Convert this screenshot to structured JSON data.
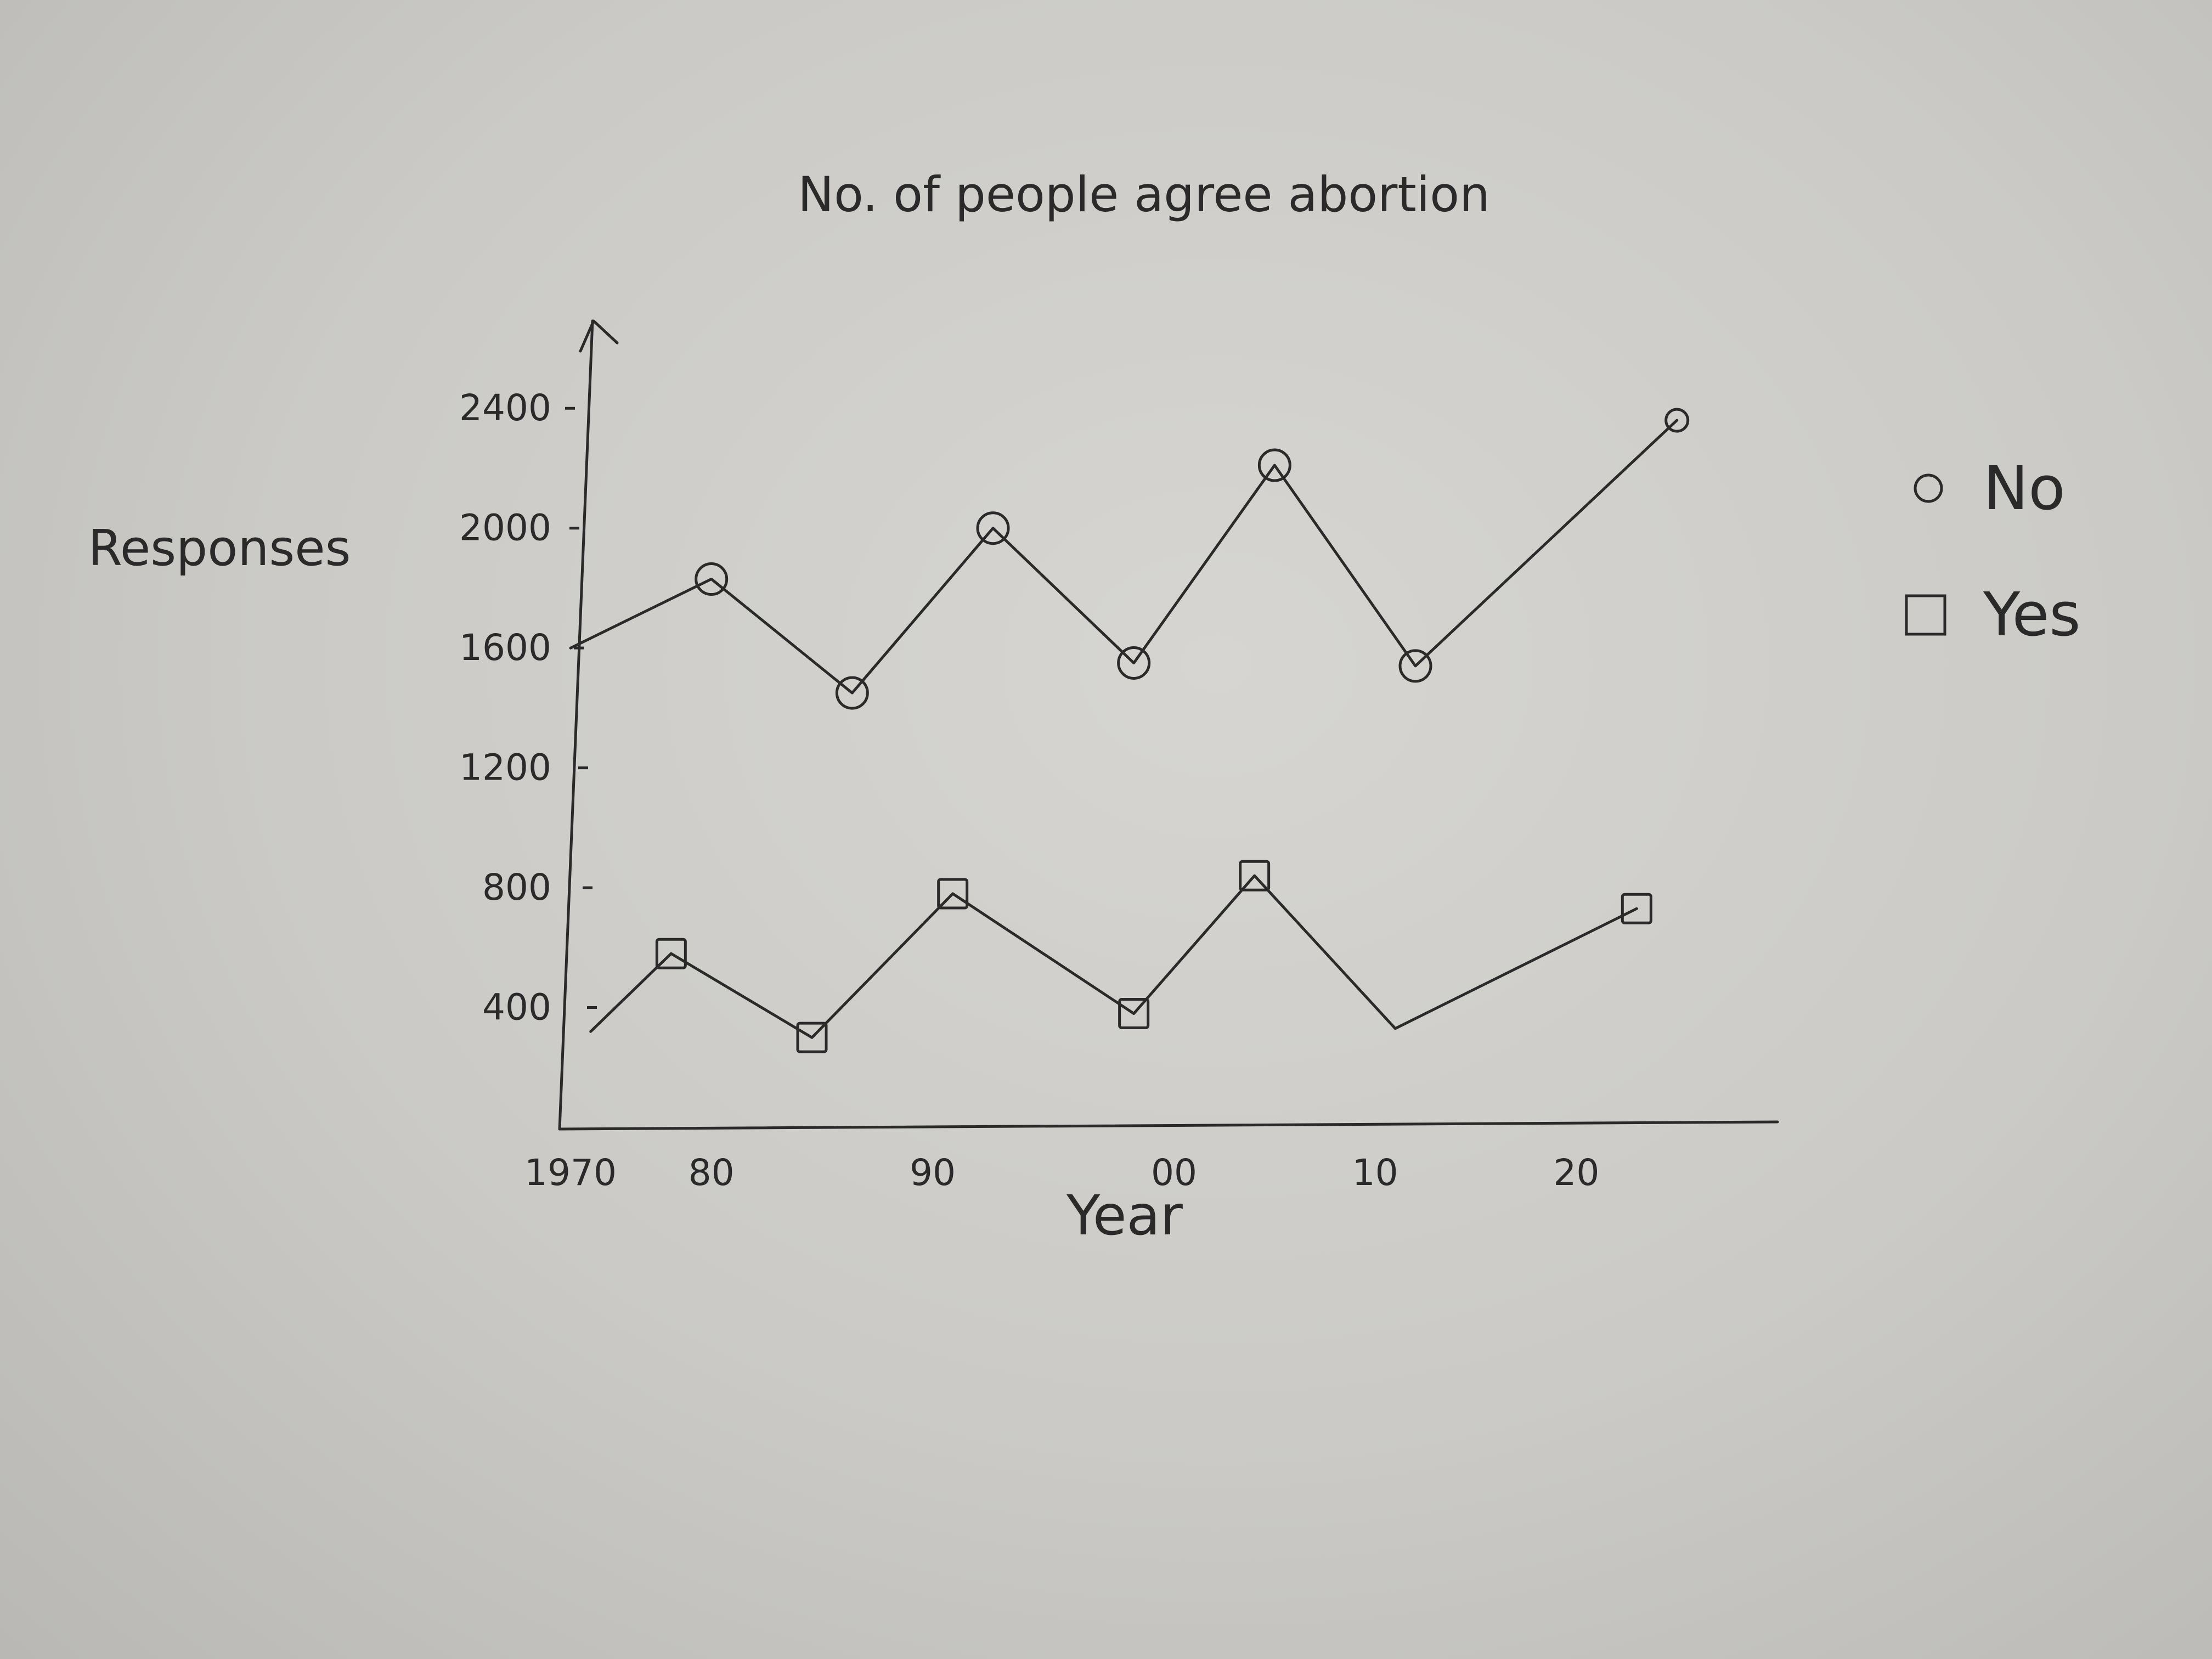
{
  "chart_data": {
    "type": "line",
    "title": "No. of people agree abortion",
    "xlabel": "Year",
    "ylabel": "Responses",
    "x_ticks": [
      "1970",
      "80",
      "90",
      "00",
      "10",
      "20"
    ],
    "y_ticks": [
      "400",
      "800",
      "1200",
      "1600",
      "2000",
      "2400"
    ],
    "xlim": [
      1970,
      2030
    ],
    "ylim": [
      0,
      2600
    ],
    "grid": false,
    "legend_placement": "right",
    "series": [
      {
        "name": "No",
        "marker": "circle",
        "points": [
          [
            1970,
            1600
          ],
          [
            1977,
            1830
          ],
          [
            1984,
            1450
          ],
          [
            1991,
            2000
          ],
          [
            1998,
            1550
          ],
          [
            2005,
            2210
          ],
          [
            2012,
            1540
          ],
          [
            2025,
            2360
          ]
        ]
      },
      {
        "name": "Yes",
        "marker": "square",
        "points": [
          [
            1971,
            320
          ],
          [
            1975,
            580
          ],
          [
            1982,
            300
          ],
          [
            1989,
            780
          ],
          [
            1998,
            380
          ],
          [
            2004,
            840
          ],
          [
            2011,
            330
          ],
          [
            2023,
            730
          ]
        ]
      }
    ],
    "colors": {
      "ink": "#2a2a2a",
      "paper": "#cfcecb"
    }
  }
}
